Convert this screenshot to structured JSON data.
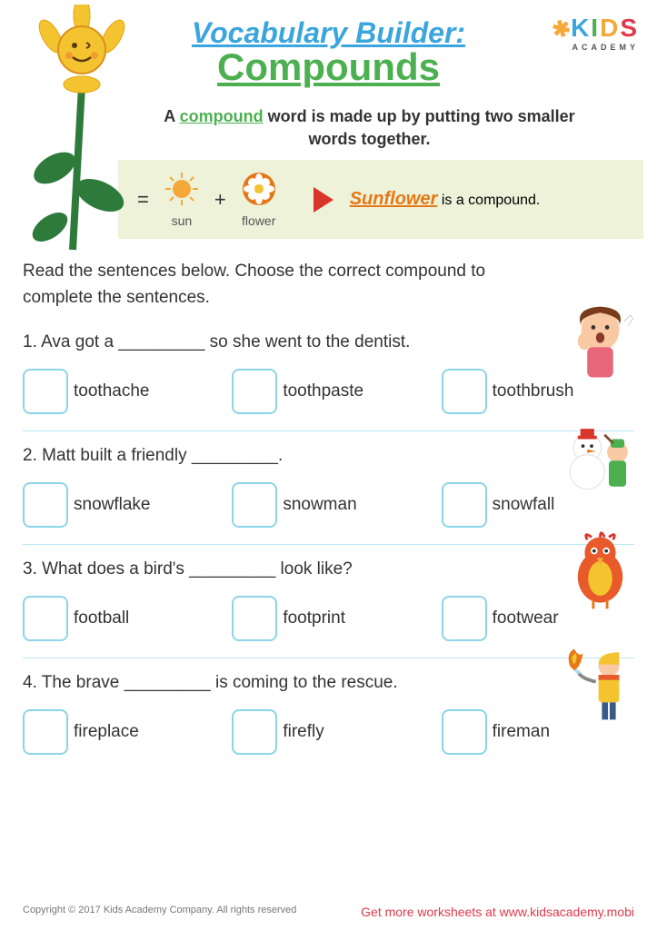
{
  "logo": {
    "brand_k": "K",
    "brand_rest": "IDS",
    "sub": "ACADEMY",
    "colors": {
      "k": "#3aa6dd",
      "i": "#4cb050",
      "d": "#f4a93a",
      "s": "#e03a4a"
    }
  },
  "title": {
    "line1": "Vocabulary Builder:",
    "line2": "Compounds",
    "line1_color": "#3aa6dd",
    "line2_color": "#4cb050"
  },
  "definition": {
    "pre": "A ",
    "keyword": "compound",
    "post": " word is made up by putting two smaller words together."
  },
  "example": {
    "bg": "#edf2d9",
    "part1_label": "sun",
    "part2_label": "flower",
    "result_word": "Sunflower",
    "result_text": " is a compound.",
    "sun_color": "#f4a93a",
    "flower_color": "#e67817",
    "triangle_color": "#d9362b"
  },
  "instructions": "Read the sentences below. Choose the correct compound to complete the sentences.",
  "questions": [
    {
      "num": "1",
      "text": "1. Ava got a _________ so she went to the dentist.",
      "choices": [
        "toothache",
        "toothpaste",
        "toothbrush"
      ],
      "icon": "girl-toothache"
    },
    {
      "num": "2",
      "text": "2. Matt built a friendly _________.",
      "choices": [
        "snowflake",
        "snowman",
        "snowfall"
      ],
      "icon": "snowman-kid"
    },
    {
      "num": "3",
      "text": "3. What does a bird's _________ look like?",
      "choices": [
        "football",
        "footprint",
        "footwear"
      ],
      "icon": "bird"
    },
    {
      "num": "4",
      "text": "4. The brave _________ is coming to the rescue.",
      "choices": [
        "fireplace",
        "firefly",
        "fireman"
      ],
      "icon": "fireman"
    }
  ],
  "footer": {
    "copyright": "Copyright © 2017 Kids Academy Company. All rights reserved",
    "link": "Get more worksheets at www.kidsacademy.mobi"
  },
  "colors": {
    "checkbox_border": "#8dd4e8",
    "divider": "#bfe6f5",
    "text": "#333333"
  }
}
